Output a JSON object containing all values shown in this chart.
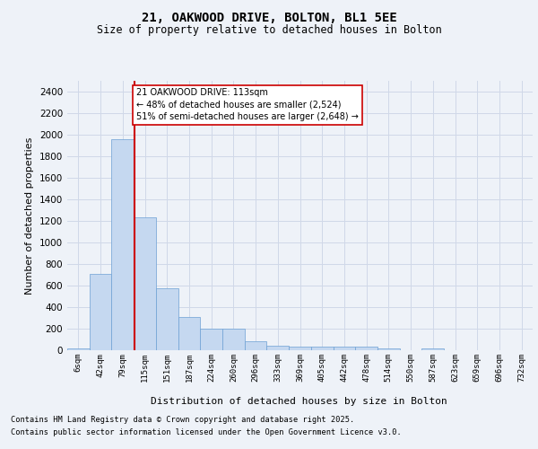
{
  "title_line1": "21, OAKWOOD DRIVE, BOLTON, BL1 5EE",
  "title_line2": "Size of property relative to detached houses in Bolton",
  "xlabel": "Distribution of detached houses by size in Bolton",
  "ylabel": "Number of detached properties",
  "categories": [
    "6sqm",
    "42sqm",
    "79sqm",
    "115sqm",
    "151sqm",
    "187sqm",
    "224sqm",
    "260sqm",
    "296sqm",
    "333sqm",
    "369sqm",
    "405sqm",
    "442sqm",
    "478sqm",
    "514sqm",
    "550sqm",
    "587sqm",
    "623sqm",
    "659sqm",
    "696sqm",
    "732sqm"
  ],
  "values": [
    15,
    710,
    1960,
    1235,
    575,
    305,
    200,
    200,
    80,
    45,
    35,
    35,
    30,
    30,
    15,
    0,
    20,
    0,
    0,
    0,
    0
  ],
  "bar_color": "#c5d8f0",
  "bar_edge_color": "#6ca0d4",
  "grid_color": "#d0d8e8",
  "background_color": "#eef2f8",
  "annotation_text": "21 OAKWOOD DRIVE: 113sqm\n← 48% of detached houses are smaller (2,524)\n51% of semi-detached houses are larger (2,648) →",
  "annotation_box_color": "#ffffff",
  "annotation_box_edge_color": "#cc0000",
  "vline_x_index": 2.52,
  "vline_color": "#cc0000",
  "ylim": [
    0,
    2500
  ],
  "yticks": [
    0,
    200,
    400,
    600,
    800,
    1000,
    1200,
    1400,
    1600,
    1800,
    2000,
    2200,
    2400
  ],
  "footer_line1": "Contains HM Land Registry data © Crown copyright and database right 2025.",
  "footer_line2": "Contains public sector information licensed under the Open Government Licence v3.0."
}
